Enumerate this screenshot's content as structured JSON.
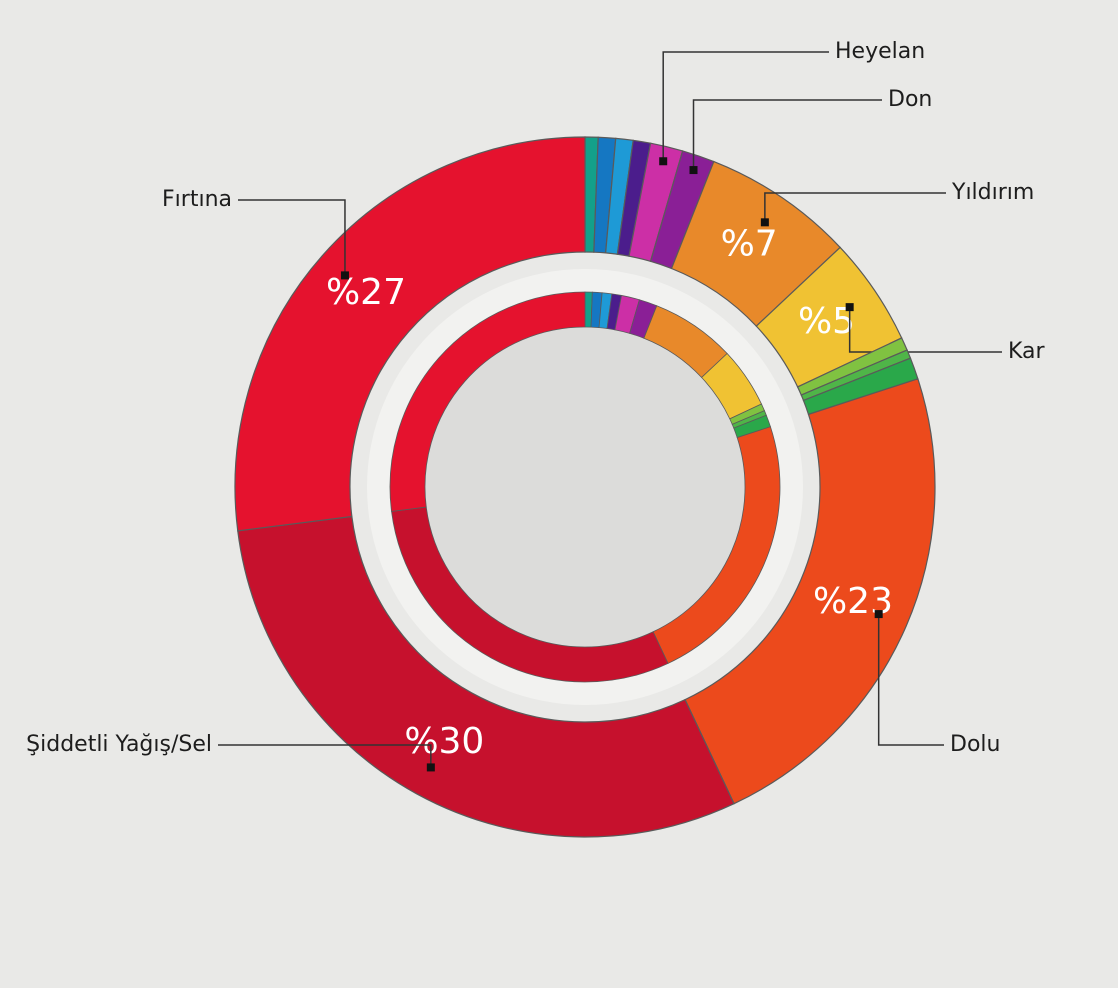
{
  "chart_data": {
    "type": "pie",
    "categories": [
      null,
      null,
      null,
      null,
      "Heyelan",
      "Don",
      "Yıldırım",
      "Kar",
      null,
      null,
      null,
      "Dolu",
      "Şiddetli Yağış/Sel",
      "Fırtına"
    ],
    "values": [
      0.6,
      0.8,
      0.8,
      0.8,
      1.5,
      1.5,
      7,
      5,
      0.6,
      0.4,
      1.0,
      23,
      30,
      27
    ],
    "value_labels": [
      null,
      null,
      null,
      null,
      null,
      null,
      "%7",
      "%5",
      null,
      null,
      null,
      "%23",
      "%30",
      "%27"
    ],
    "colors": [
      "#13a08a",
      "#1577c2",
      "#1e9ad6",
      "#4b1d8c",
      "#cc2fa6",
      "#8a1f96",
      "#e8892a",
      "#f0c233",
      "#80c241",
      "#4fb548",
      "#2aa84a",
      "#ec4a1c",
      "#c6112d",
      "#e5122e"
    ]
  }
}
